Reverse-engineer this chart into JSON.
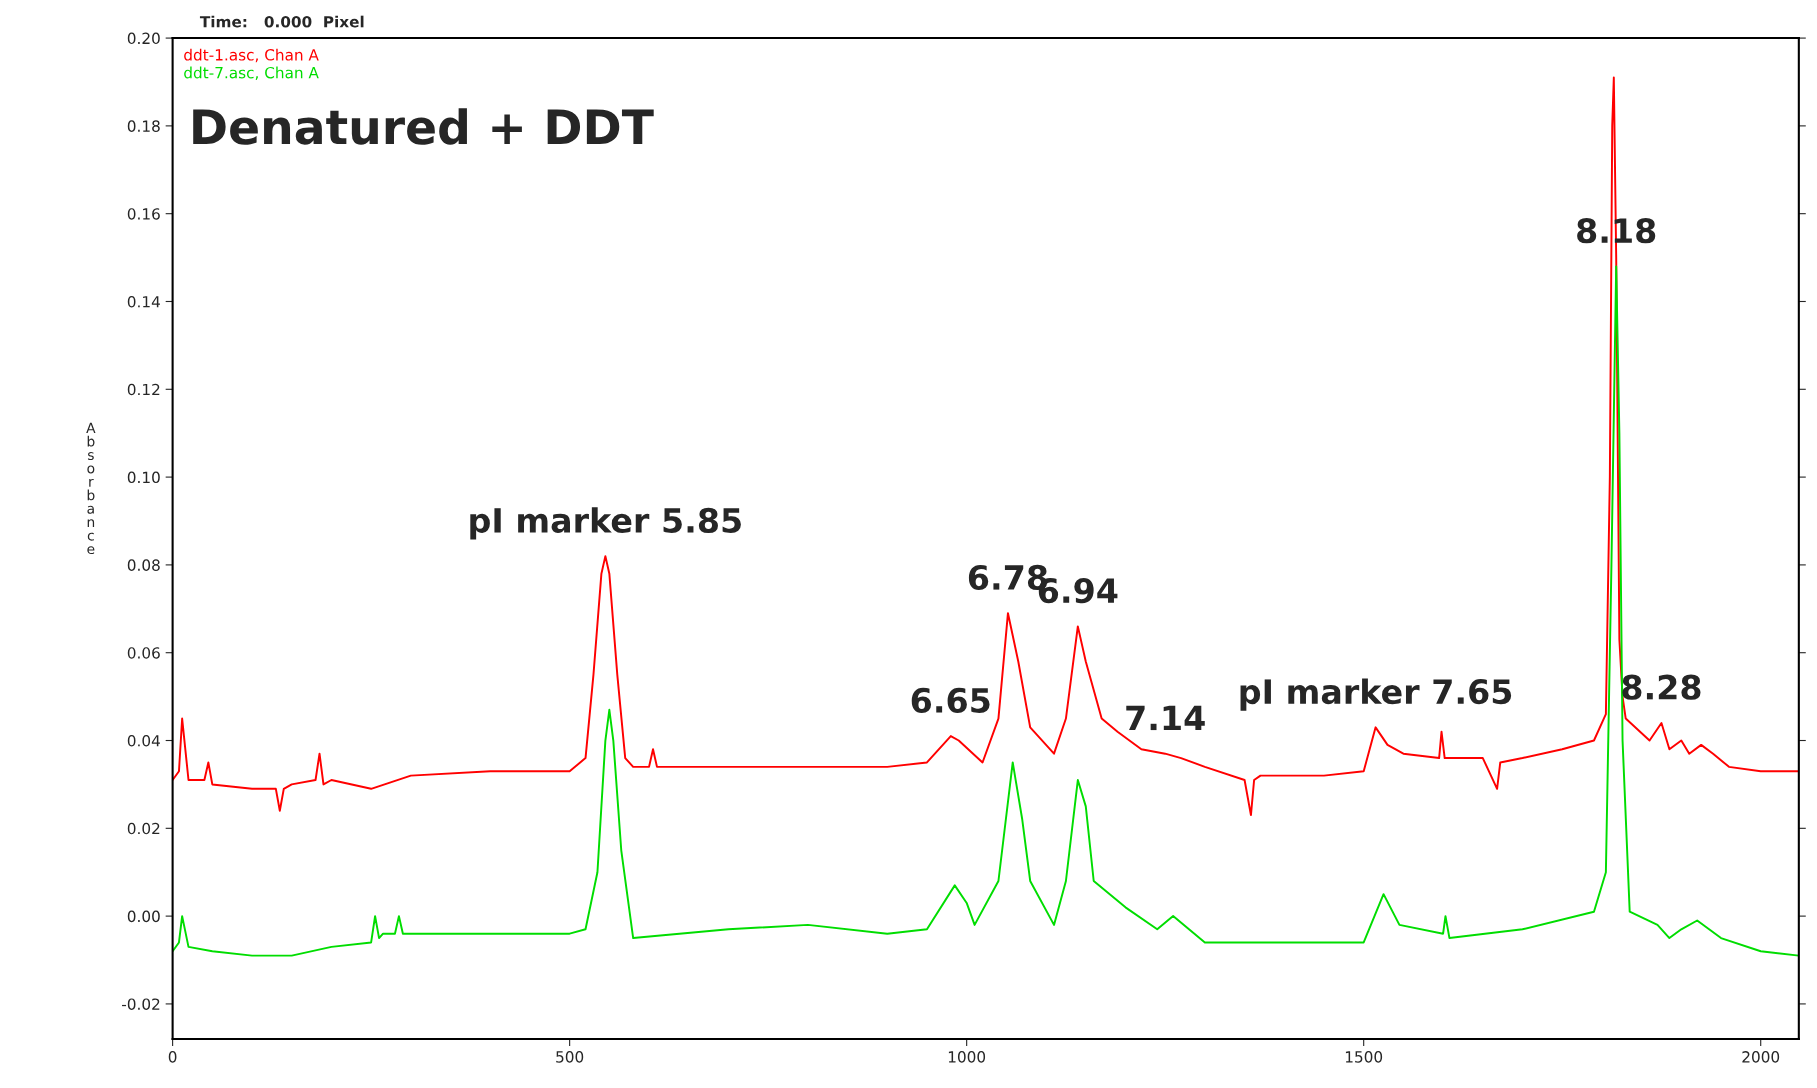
{
  "chart_data": {
    "type": "line",
    "title": "Denatured + DDT",
    "ylabel": "Absorbance",
    "xlim": [
      0,
      2048
    ],
    "ylim": [
      -0.028,
      0.2
    ],
    "xticks": [
      0,
      500,
      1000,
      1500,
      2000
    ],
    "yticks": [
      {
        "value": -0.02,
        "label": "-0.02"
      },
      {
        "value": 0,
        "label": "0.00"
      },
      {
        "value": 0.02,
        "label": "0.02"
      },
      {
        "value": 0.04,
        "label": "0.04"
      },
      {
        "value": 0.06,
        "label": "0.06"
      },
      {
        "value": 0.08,
        "label": "0.08"
      },
      {
        "value": 0.1,
        "label": "0.10"
      },
      {
        "value": 0.12,
        "label": "0.12"
      },
      {
        "value": 0.14,
        "label": "0.14"
      },
      {
        "value": 0.16,
        "label": "0.16"
      },
      {
        "value": 0.18,
        "label": "0.18"
      },
      {
        "value": 0.2,
        "label": "0.20"
      }
    ],
    "grid": false,
    "legend": "top left",
    "marker": "none",
    "line_style": "solid",
    "series": [
      {
        "name": "ddt-1.asc, Chan A",
        "color": "#ff0000",
        "x": [
          0,
          8,
          12,
          20,
          40,
          45,
          50,
          100,
          130,
          135,
          140,
          150,
          180,
          185,
          190,
          200,
          250,
          300,
          400,
          450,
          500,
          520,
          530,
          540,
          545,
          550,
          560,
          570,
          580,
          600,
          605,
          610,
          700,
          800,
          900,
          950,
          980,
          990,
          1020,
          1040,
          1052,
          1065,
          1080,
          1110,
          1125,
          1140,
          1150,
          1170,
          1190,
          1220,
          1250,
          1270,
          1300,
          1350,
          1358,
          1362,
          1370,
          1450,
          1500,
          1515,
          1530,
          1550,
          1595,
          1598,
          1602,
          1650,
          1668,
          1672,
          1700,
          1750,
          1790,
          1805,
          1810,
          1813,
          1815,
          1818,
          1822,
          1826,
          1830,
          1860,
          1875,
          1885,
          1900,
          1910,
          1925,
          1940,
          1960,
          2000,
          2048
        ],
        "values": [
          0.031,
          0.033,
          0.045,
          0.031,
          0.031,
          0.035,
          0.03,
          0.029,
          0.029,
          0.024,
          0.029,
          0.03,
          0.031,
          0.037,
          0.03,
          0.031,
          0.029,
          0.032,
          0.033,
          0.033,
          0.033,
          0.036,
          0.055,
          0.078,
          0.082,
          0.078,
          0.055,
          0.036,
          0.034,
          0.034,
          0.038,
          0.034,
          0.034,
          0.034,
          0.034,
          0.035,
          0.041,
          0.04,
          0.035,
          0.045,
          0.069,
          0.058,
          0.043,
          0.037,
          0.045,
          0.066,
          0.058,
          0.045,
          0.042,
          0.038,
          0.037,
          0.036,
          0.034,
          0.031,
          0.023,
          0.031,
          0.032,
          0.032,
          0.033,
          0.043,
          0.039,
          0.037,
          0.036,
          0.042,
          0.036,
          0.036,
          0.029,
          0.035,
          0.036,
          0.038,
          0.04,
          0.046,
          0.1,
          0.18,
          0.191,
          0.15,
          0.063,
          0.05,
          0.045,
          0.04,
          0.044,
          0.038,
          0.04,
          0.037,
          0.039,
          0.037,
          0.034,
          0.033,
          0.033
        ]
      },
      {
        "name": "ddt-7.asc, Chan A",
        "color": "#00dd00",
        "x": [
          0,
          8,
          12,
          20,
          50,
          100,
          150,
          200,
          250,
          255,
          260,
          265,
          280,
          285,
          290,
          400,
          500,
          520,
          535,
          545,
          550,
          555,
          565,
          580,
          700,
          800,
          900,
          950,
          985,
          1000,
          1010,
          1040,
          1058,
          1070,
          1080,
          1110,
          1125,
          1140,
          1150,
          1160,
          1200,
          1240,
          1260,
          1300,
          1400,
          1500,
          1525,
          1545,
          1600,
          1603,
          1608,
          1700,
          1790,
          1805,
          1812,
          1818,
          1822,
          1826,
          1835,
          1870,
          1885,
          1900,
          1920,
          1950,
          2000,
          2048
        ],
        "values": [
          -0.008,
          -0.006,
          0.0,
          -0.007,
          -0.008,
          -0.009,
          -0.009,
          -0.007,
          -0.006,
          0.0,
          -0.005,
          -0.004,
          -0.004,
          0.0,
          -0.004,
          -0.004,
          -0.004,
          -0.003,
          0.01,
          0.04,
          0.047,
          0.04,
          0.015,
          -0.005,
          -0.003,
          -0.002,
          -0.004,
          -0.003,
          0.007,
          0.003,
          -0.002,
          0.008,
          0.035,
          0.022,
          0.008,
          -0.002,
          0.008,
          0.031,
          0.025,
          0.008,
          0.002,
          -0.003,
          0.0,
          -0.006,
          -0.006,
          -0.006,
          0.005,
          -0.002,
          -0.004,
          0.0,
          -0.005,
          -0.003,
          0.001,
          0.01,
          0.08,
          0.148,
          0.11,
          0.04,
          0.001,
          -0.002,
          -0.005,
          -0.003,
          -0.001,
          -0.005,
          -0.008,
          -0.009
        ]
      }
    ],
    "annotations": [
      "Time:   0.000  Pixel",
      {
        "text": "pI marker 5.85",
        "x": 545,
        "y": 0.082
      },
      {
        "text": "6.65",
        "x": 980,
        "y": 0.041
      },
      {
        "text": "6.78",
        "x": 1052,
        "y": 0.069
      },
      {
        "text": "6.94",
        "x": 1140,
        "y": 0.066
      },
      {
        "text": "7.14",
        "x": 1250,
        "y": 0.037
      },
      {
        "text": "pI marker 7.65",
        "x": 1515,
        "y": 0.043
      },
      {
        "text": "8.18",
        "x": 1818,
        "y": 0.148
      },
      {
        "text": "8.28",
        "x": 1875,
        "y": 0.044
      }
    ]
  }
}
